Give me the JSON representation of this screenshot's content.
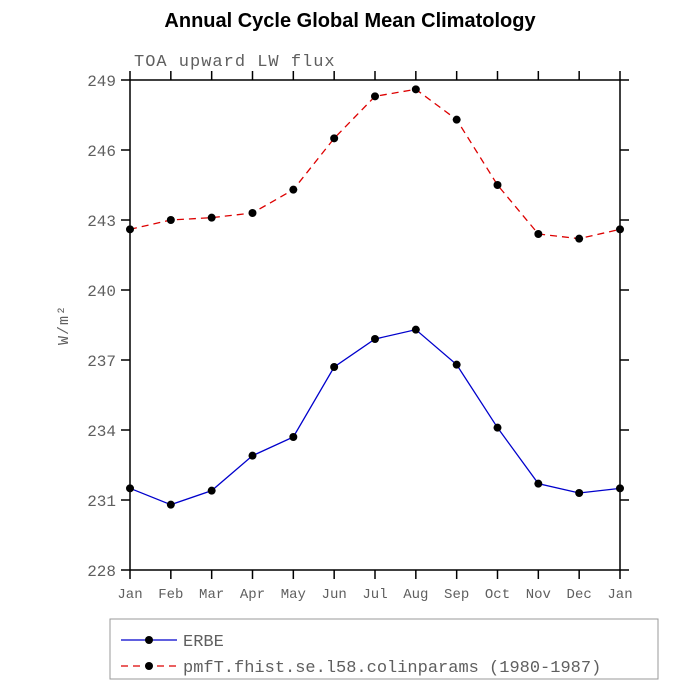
{
  "title": "Annual Cycle Global Mean Climatology",
  "chart_data": {
    "type": "line",
    "title": "Annual Cycle Global Mean Climatology",
    "subtitle": "TOA upward LW flux",
    "xlabel": "",
    "ylabel": "W/m²",
    "x": [
      "Jan",
      "Feb",
      "Mar",
      "Apr",
      "May",
      "Jun",
      "Jul",
      "Aug",
      "Sep",
      "Oct",
      "Nov",
      "Dec",
      "Jan"
    ],
    "ylim": [
      228,
      249
    ],
    "yticks": [
      228,
      231,
      234,
      237,
      240,
      243,
      246,
      249
    ],
    "grid": false,
    "legend_position": "bottom",
    "series": [
      {
        "name": "ERBE",
        "color": "#0000cc",
        "style": "solid",
        "marker": "filled-circle",
        "marker_color": "#000000",
        "values": [
          231.5,
          230.8,
          231.4,
          232.9,
          233.7,
          236.7,
          237.9,
          238.3,
          236.8,
          234.1,
          231.7,
          231.3,
          231.5
        ]
      },
      {
        "name": "pmfT.fhist.se.l58.colinparams (1980-1987)",
        "color": "#dd0000",
        "style": "dashed",
        "marker": "filled-circle",
        "marker_color": "#000000",
        "values": [
          242.6,
          243.0,
          243.1,
          243.3,
          244.3,
          246.5,
          248.3,
          248.6,
          247.3,
          244.5,
          242.4,
          242.2,
          242.6
        ]
      }
    ]
  },
  "colors": {
    "frame": "#000000",
    "axis_text": "#5f5f5f",
    "legend_border": "#999999",
    "marker": "#000000"
  }
}
